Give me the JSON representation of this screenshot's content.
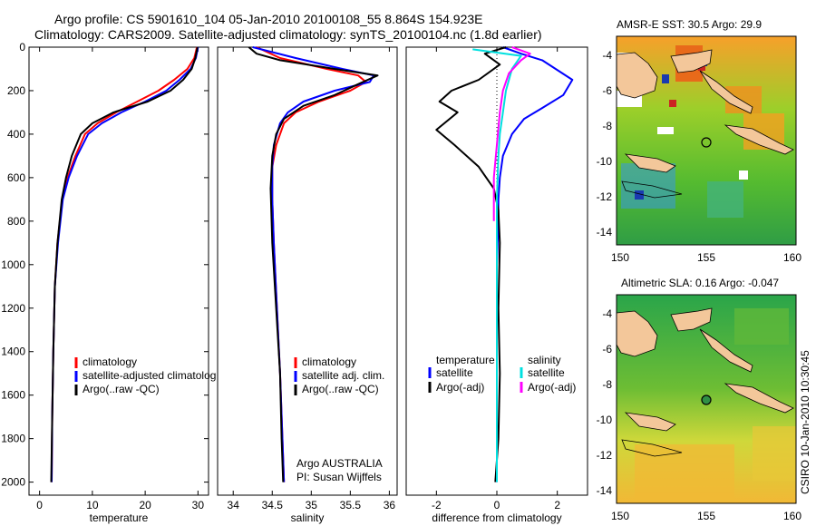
{
  "figure": {
    "title_line1": "Argo profile: CS 5901610_104 05-Jan-2010 20100108_55 8.864S 154.923E",
    "title_line2": "Climatology: CARS2009. Satellite-adjusted climatology: synTS_20100104.nc (1.8d earlier)",
    "credit": "CSIRO 10-Jan-2010 10:30:45"
  },
  "chart_data": [
    {
      "id": "temperature",
      "type": "line",
      "xlabel": "temperature",
      "ylabel": "",
      "xlim": [
        -2,
        32
      ],
      "ylim": [
        2060,
        0
      ],
      "xticks": [
        0,
        10,
        20,
        30
      ],
      "yticks": [
        0,
        200,
        400,
        600,
        800,
        1000,
        1200,
        1400,
        1600,
        1800,
        2000
      ],
      "legend": [
        "climatology",
        "satellite-adjusted climatolog",
        "Argo(..raw -QC)"
      ],
      "legend_position": "lower-right",
      "series": [
        {
          "name": "climatology",
          "color": "#ff0000",
          "x": [
            29.8,
            29.3,
            28.0,
            25.5,
            22.5,
            18.5,
            14.5,
            11.0,
            8.6,
            6.8,
            5.3,
            4.3,
            3.4,
            2.9,
            2.6,
            2.4,
            2.3
          ],
          "y": [
            0,
            50,
            100,
            150,
            200,
            250,
            300,
            350,
            400,
            500,
            600,
            700,
            900,
            1100,
            1400,
            1700,
            2000
          ]
        },
        {
          "name": "satellite-adjusted climatolog",
          "color": "#0000ff",
          "x": [
            30.0,
            29.6,
            28.6,
            26.5,
            24.0,
            20.0,
            15.5,
            11.8,
            9.2,
            7.1,
            5.5,
            4.4,
            3.5,
            2.9,
            2.6,
            2.4,
            2.3
          ],
          "y": [
            0,
            50,
            100,
            150,
            200,
            250,
            300,
            350,
            400,
            500,
            600,
            700,
            900,
            1100,
            1400,
            1700,
            2000
          ]
        },
        {
          "name": "Argo(..raw -QC)",
          "color": "#000000",
          "x": [
            29.9,
            29.5,
            28.8,
            27.2,
            24.8,
            20.5,
            14.0,
            10.0,
            7.8,
            6.1,
            5.0,
            4.2,
            3.4,
            2.9,
            2.6,
            2.4,
            2.2
          ],
          "y": [
            0,
            50,
            100,
            150,
            200,
            250,
            300,
            350,
            400,
            500,
            600,
            700,
            900,
            1100,
            1400,
            1700,
            2000
          ]
        }
      ]
    },
    {
      "id": "salinity",
      "type": "line",
      "xlabel": "salinity",
      "ylabel": "",
      "xlim": [
        33.8,
        36.1
      ],
      "ylim": [
        2060,
        0
      ],
      "xticks": [
        34,
        34.5,
        35,
        35.5,
        36
      ],
      "yticks": [],
      "legend": [
        "climatology",
        "satellite adj. clim.",
        "Argo(..raw -QC)"
      ],
      "legend_position": "lower-right",
      "annotation": [
        "Argo AUSTRALIA",
        "PI: Susan Wijffels"
      ],
      "series": [
        {
          "name": "climatology",
          "color": "#ff0000",
          "x": [
            34.3,
            34.6,
            35.2,
            35.6,
            35.7,
            35.5,
            35.1,
            34.8,
            34.65,
            34.55,
            34.5,
            34.5,
            34.52,
            34.56,
            34.6,
            34.63,
            34.65
          ],
          "y": [
            0,
            50,
            100,
            130,
            160,
            200,
            250,
            300,
            350,
            450,
            550,
            700,
            900,
            1200,
            1500,
            1800,
            2000
          ]
        },
        {
          "name": "satellite adj. clim.",
          "color": "#0000ff",
          "x": [
            34.25,
            34.8,
            35.4,
            35.8,
            35.75,
            35.3,
            34.9,
            34.7,
            34.6,
            34.52,
            34.5,
            34.5,
            34.52,
            34.56,
            34.6,
            34.63,
            34.65
          ],
          "y": [
            0,
            50,
            100,
            130,
            160,
            200,
            250,
            300,
            350,
            450,
            550,
            700,
            900,
            1200,
            1500,
            1800,
            2000
          ]
        },
        {
          "name": "Argo(..raw -QC)",
          "color": "#000000",
          "x": [
            34.2,
            34.3,
            34.6,
            35.3,
            35.85,
            35.6,
            35.3,
            34.9,
            34.65,
            34.55,
            34.5,
            34.48,
            34.5,
            34.55,
            34.6,
            34.62,
            34.64
          ],
          "y": [
            0,
            30,
            60,
            100,
            130,
            170,
            220,
            270,
            330,
            400,
            500,
            650,
            900,
            1200,
            1500,
            1800,
            2000
          ]
        }
      ]
    },
    {
      "id": "difference",
      "type": "line",
      "xlabel": "difference from climatology",
      "ylabel": "",
      "xlim": [
        -3,
        3
      ],
      "ylim": [
        2060,
        0
      ],
      "xticks": [
        -2,
        0,
        2
      ],
      "yticks": [],
      "legend_left_title": "temperature",
      "legend_left": [
        "satellite",
        "Argo(-adj)"
      ],
      "legend_right_title": "salinity",
      "legend_right": [
        "satellite",
        "Argo(-adj)"
      ],
      "legend_position": "center",
      "series": [
        {
          "name": "temperature satellite",
          "color": "#0000ff",
          "x": [
            0.2,
            0.8,
            1.5,
            2.5,
            2.2,
            1.5,
            0.9,
            0.5,
            0.2,
            0.1,
            0.05,
            0.05,
            0.0,
            0.0,
            0.0,
            0.0,
            0.0
          ],
          "y": [
            0,
            30,
            60,
            150,
            220,
            280,
            330,
            400,
            500,
            600,
            700,
            800,
            1000,
            1300,
            1600,
            1900,
            2000
          ]
        },
        {
          "name": "temperature Argo(-adj)",
          "color": "#000000",
          "x": [
            0.3,
            -0.4,
            0.1,
            -0.6,
            -1.5,
            -1.9,
            -1.3,
            -2.0,
            -1.4,
            -0.6,
            -0.1,
            0.05,
            0.1,
            0.05,
            0.1,
            0.05,
            -0.05
          ],
          "y": [
            0,
            30,
            80,
            150,
            200,
            250,
            300,
            380,
            450,
            550,
            650,
            750,
            900,
            1200,
            1500,
            1800,
            2000
          ]
        },
        {
          "name": "salinity satellite",
          "color": "#00e0e0",
          "x": [
            -0.8,
            0.8,
            0.5,
            0.3,
            0.2,
            0.1,
            0.05,
            0.0,
            0.0,
            0.0
          ],
          "y": [
            10,
            40,
            100,
            200,
            300,
            400,
            500,
            700,
            1000,
            2000
          ]
        },
        {
          "name": "salinity Argo(-adj)",
          "color": "#ff00ff",
          "x": [
            0.5,
            1.1,
            0.8,
            0.4,
            0.2,
            0.1,
            0.0,
            -0.1,
            -0.1
          ],
          "y": [
            0,
            30,
            60,
            120,
            200,
            300,
            450,
            600,
            800
          ]
        }
      ]
    }
  ],
  "maps": [
    {
      "title": "AMSR-E SST: 30.5 Argo: 29.9",
      "xticks": [
        "150",
        "155",
        "160"
      ],
      "yticks": [
        "-4",
        "-6",
        "-8",
        "-10",
        "-12",
        "-14"
      ],
      "marker": {
        "lon": 154.923,
        "lat": -8.864
      }
    },
    {
      "title": "Altimetric SLA: 0.16 Argo: -0.047",
      "xticks": [
        "150",
        "155",
        "160"
      ],
      "yticks": [
        "-4",
        "-6",
        "-8",
        "-10",
        "-12",
        "-14"
      ],
      "marker": {
        "lon": 154.923,
        "lat": -8.864
      }
    }
  ]
}
